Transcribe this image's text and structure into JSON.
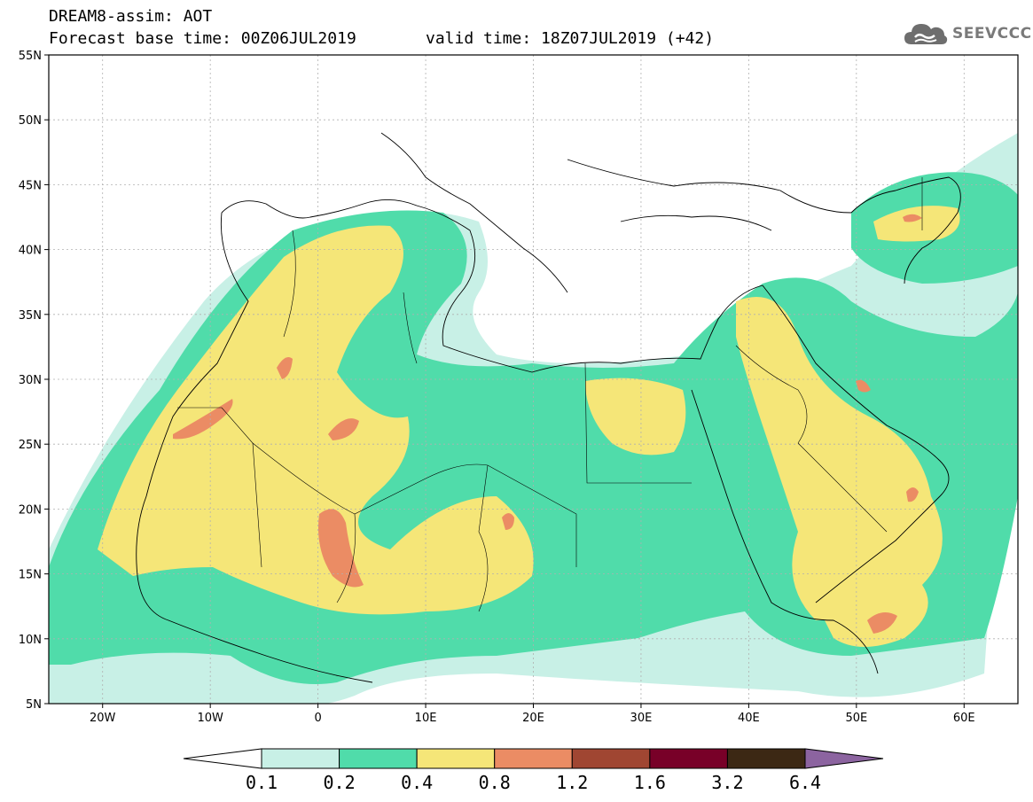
{
  "title": {
    "line1": "DREAM8-assim: AOT",
    "line2": "Forecast base time: 00Z06JUL2019",
    "valid": "valid time: 18Z07JUL2019 (+42)"
  },
  "logo": {
    "text": "SEEVCCC",
    "icon": "cloud-logo-icon",
    "color": "#6e6e6e"
  },
  "map": {
    "projection": "lat-lon",
    "lon_range": [
      -25,
      65
    ],
    "lat_range": [
      5,
      55
    ],
    "grid": true,
    "lat_ticks": [
      "55N",
      "50N",
      "45N",
      "40N",
      "35N",
      "30N",
      "25N",
      "20N",
      "15N",
      "10N",
      "5N"
    ],
    "lon_ticks": [
      "20W",
      "10W",
      "0",
      "10E",
      "20E",
      "30E",
      "40E",
      "50E",
      "60E"
    ]
  },
  "colorbar": {
    "labels": [
      "0.1",
      "0.2",
      "0.4",
      "0.8",
      "1.2",
      "1.6",
      "3.2",
      "6.4"
    ],
    "colors": [
      "#c8f0e6",
      "#50dcaa",
      "#f5e678",
      "#eb8c64",
      "#a04632",
      "#780028",
      "#3c2814",
      "#8c64a0"
    ],
    "below_color": "#ffffff"
  }
}
